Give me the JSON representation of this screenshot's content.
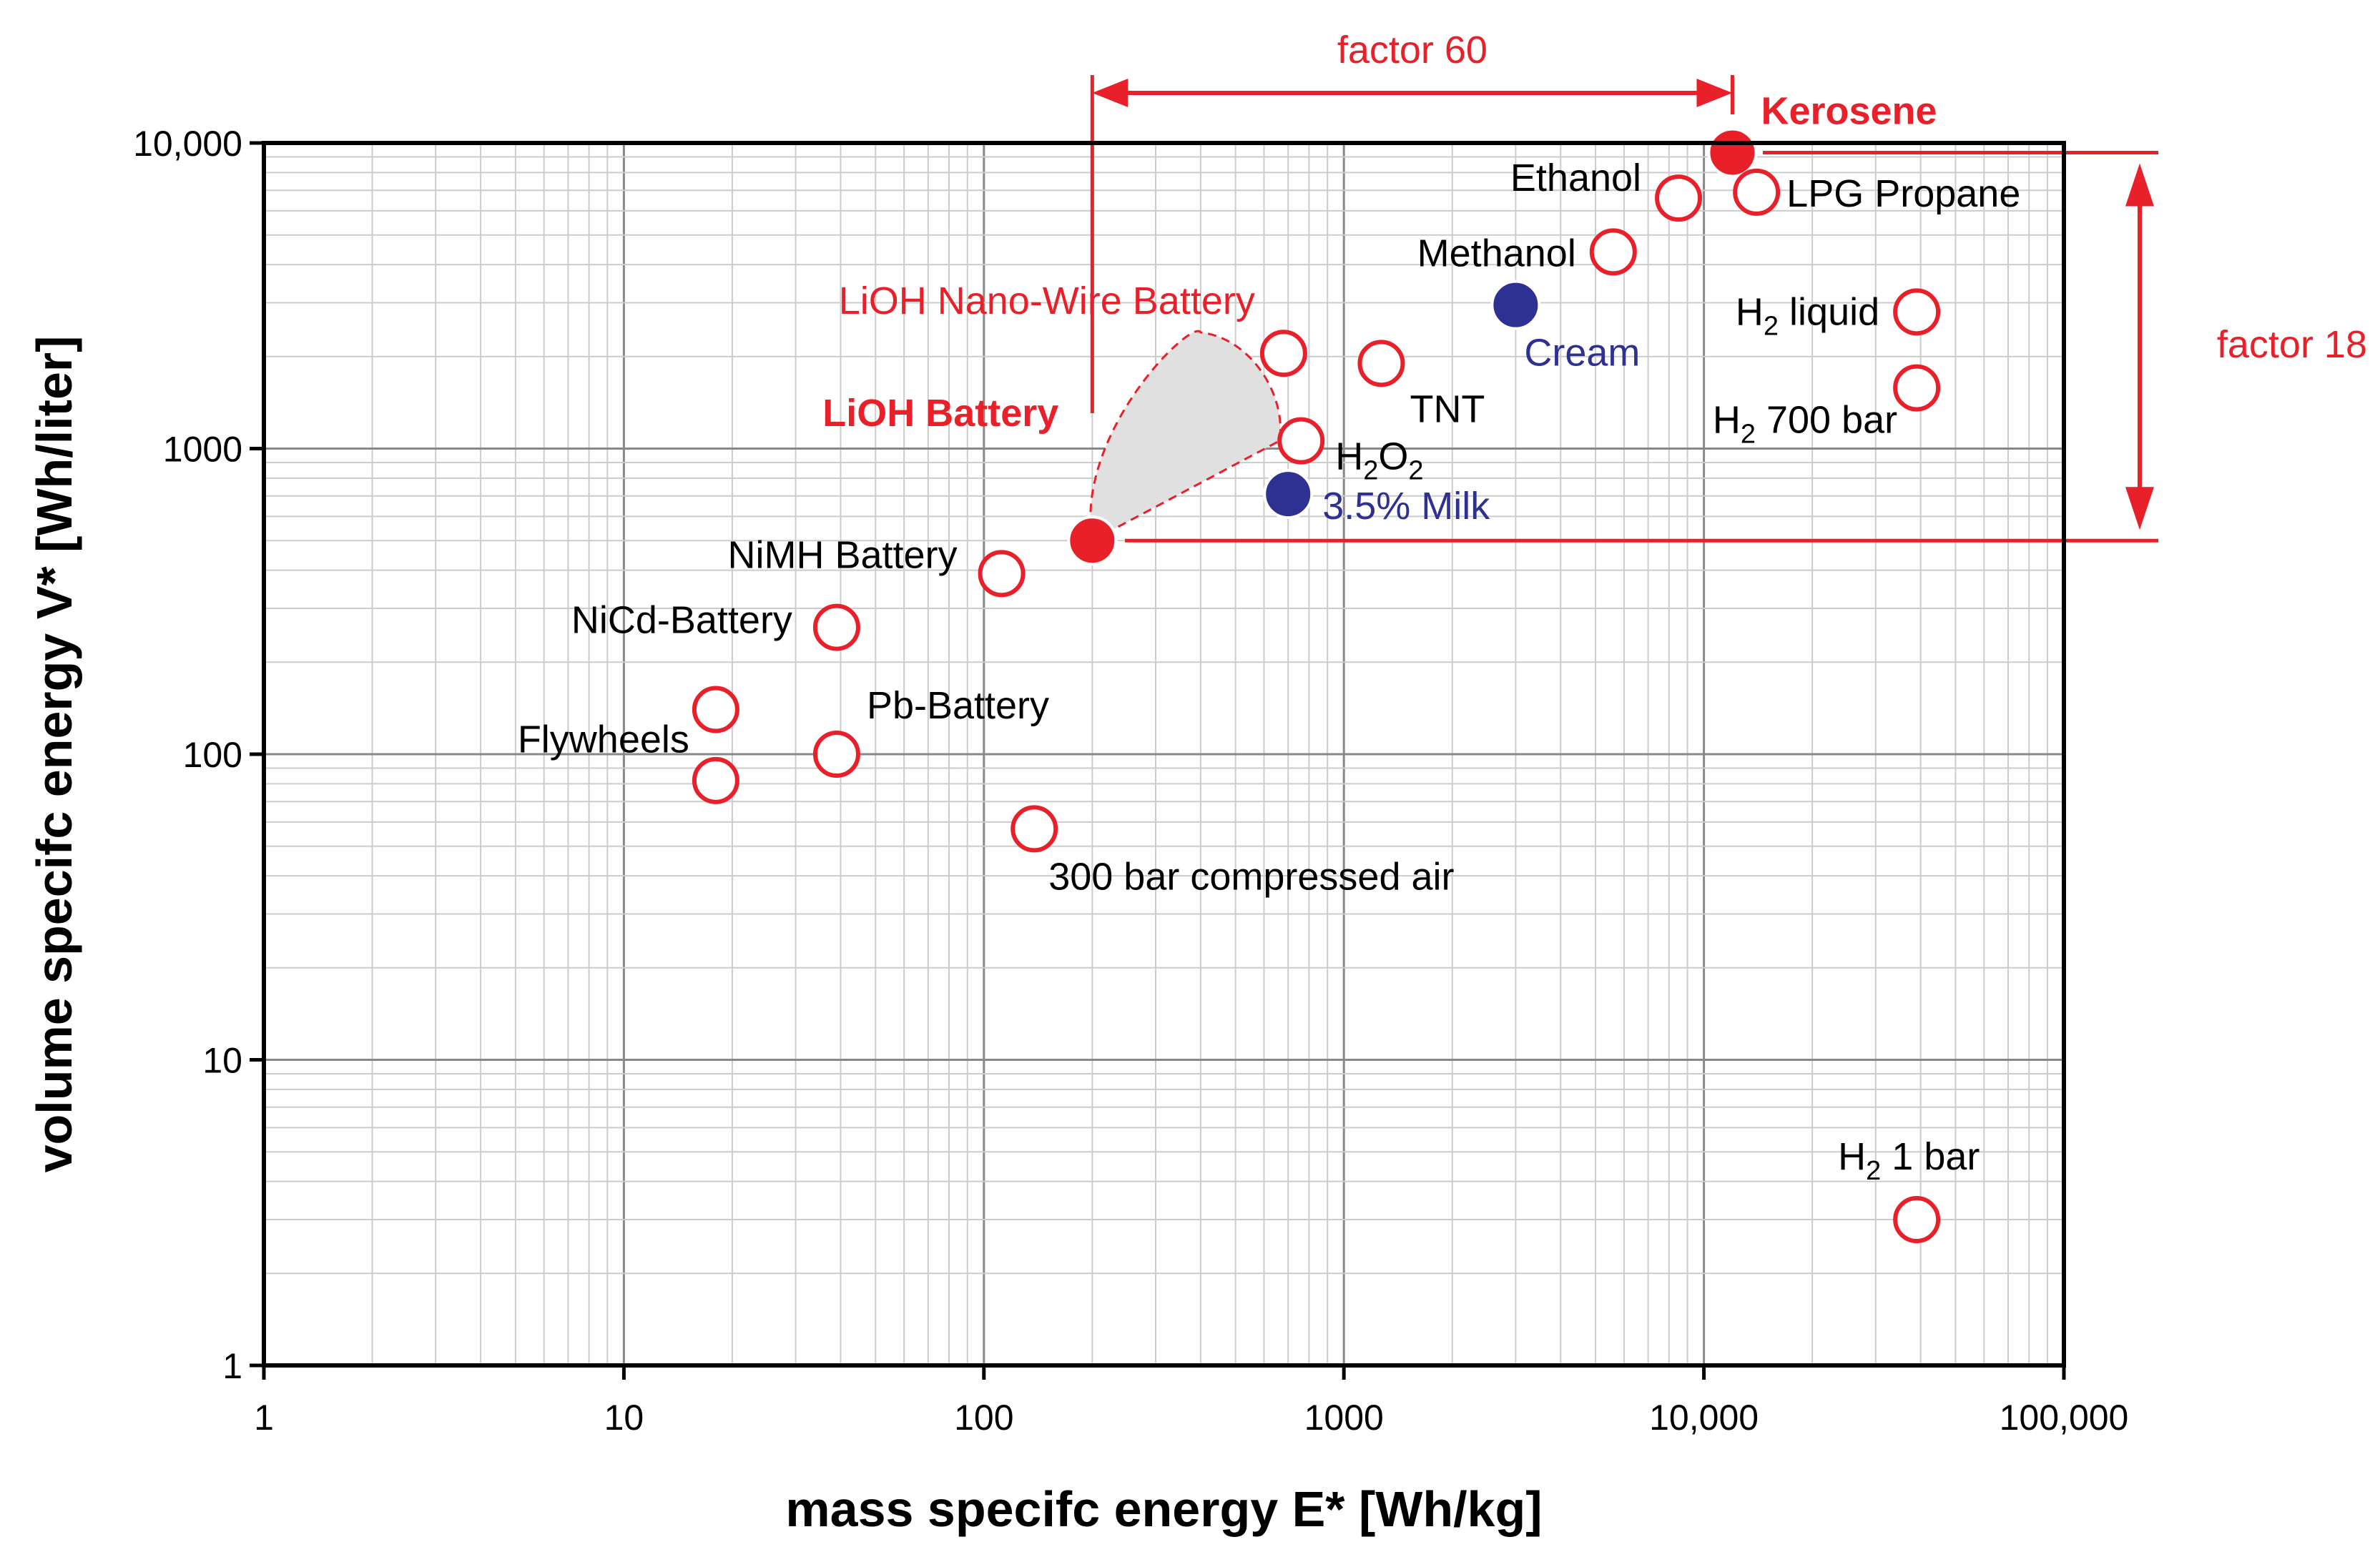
{
  "chart_data": {
    "type": "scatter",
    "xscale": "log",
    "yscale": "log",
    "xlabel": "mass specifc energy E*  [Wh/kg]",
    "ylabel": "volume specifc energy V*  [Wh/liter]",
    "xlim": [
      1,
      100000
    ],
    "ylim": [
      1,
      10000
    ],
    "grid": true,
    "xticks": [
      "1",
      "10",
      "100",
      "1000",
      "10,000",
      "100,000"
    ],
    "yticks": [
      "1",
      "10",
      "100",
      "1000",
      "10,000"
    ],
    "points": [
      {
        "x": 12000,
        "y": 9300,
        "style": "filled-red",
        "label": "Kerosene",
        "sub": ""
      },
      {
        "x": 8500,
        "y": 6600,
        "style": "open-red",
        "label": "Ethanol",
        "sub": ""
      },
      {
        "x": 14000,
        "y": 6900,
        "style": "open-red",
        "label": "LPG Propane",
        "sub": ""
      },
      {
        "x": 5600,
        "y": 4400,
        "style": "open-red",
        "label": "Methanol",
        "sub": ""
      },
      {
        "x": 3000,
        "y": 2950,
        "style": "filled-blue",
        "label": "Cream",
        "sub": ""
      },
      {
        "x": 39000,
        "y": 2800,
        "style": "open-red",
        "label": "H",
        "sub": "2",
        "label2": " liquid"
      },
      {
        "x": 39000,
        "y": 1580,
        "style": "open-red",
        "label": "H",
        "sub": "2",
        "label2": " 700 bar"
      },
      {
        "x": 680,
        "y": 2050,
        "style": "open-red",
        "label": "LiOH Nano-Wire Battery",
        "sub": ""
      },
      {
        "x": 1270,
        "y": 1900,
        "style": "open-red",
        "label": "TNT",
        "sub": ""
      },
      {
        "x": 760,
        "y": 1060,
        "style": "open-red",
        "label": "H",
        "sub": "2",
        "label2": "O",
        "sub2": "2"
      },
      {
        "x": 700,
        "y": 710,
        "style": "filled-blue",
        "label": "3.5% Milk",
        "sub": ""
      },
      {
        "x": 200,
        "y": 500,
        "style": "filled-red",
        "label": "LiOH Battery",
        "sub": ""
      },
      {
        "x": 112,
        "y": 390,
        "style": "open-red",
        "label": "NiMH Battery",
        "sub": ""
      },
      {
        "x": 39,
        "y": 260,
        "style": "open-red",
        "label": "NiCd-Battery",
        "sub": ""
      },
      {
        "x": 18,
        "y": 140,
        "style": "open-red",
        "label": "Flywheels",
        "sub": ""
      },
      {
        "x": 18,
        "y": 82,
        "style": "open-red",
        "label": "",
        "sub": ""
      },
      {
        "x": 39,
        "y": 100,
        "style": "open-red",
        "label": "Pb-Battery",
        "sub": ""
      },
      {
        "x": 138,
        "y": 57,
        "style": "open-red",
        "label": "300 bar compressed air",
        "sub": ""
      },
      {
        "x": 39000,
        "y": 3,
        "style": "open-red",
        "label": "H",
        "sub": "2",
        "label2": " 1 bar"
      }
    ],
    "annotations": [
      {
        "text": "factor 60",
        "from_x": 200,
        "to_x": 12000,
        "kind": "horizontal-arrow"
      },
      {
        "text": "factor 18",
        "from_y": 500,
        "to_y": 9300,
        "kind": "vertical-arrow"
      }
    ]
  },
  "colors": {
    "red": "#e8202a",
    "blue": "#2e3192",
    "grid_minor": "#cccccc",
    "grid_major": "#888888",
    "shade": "#e0e0e0"
  }
}
